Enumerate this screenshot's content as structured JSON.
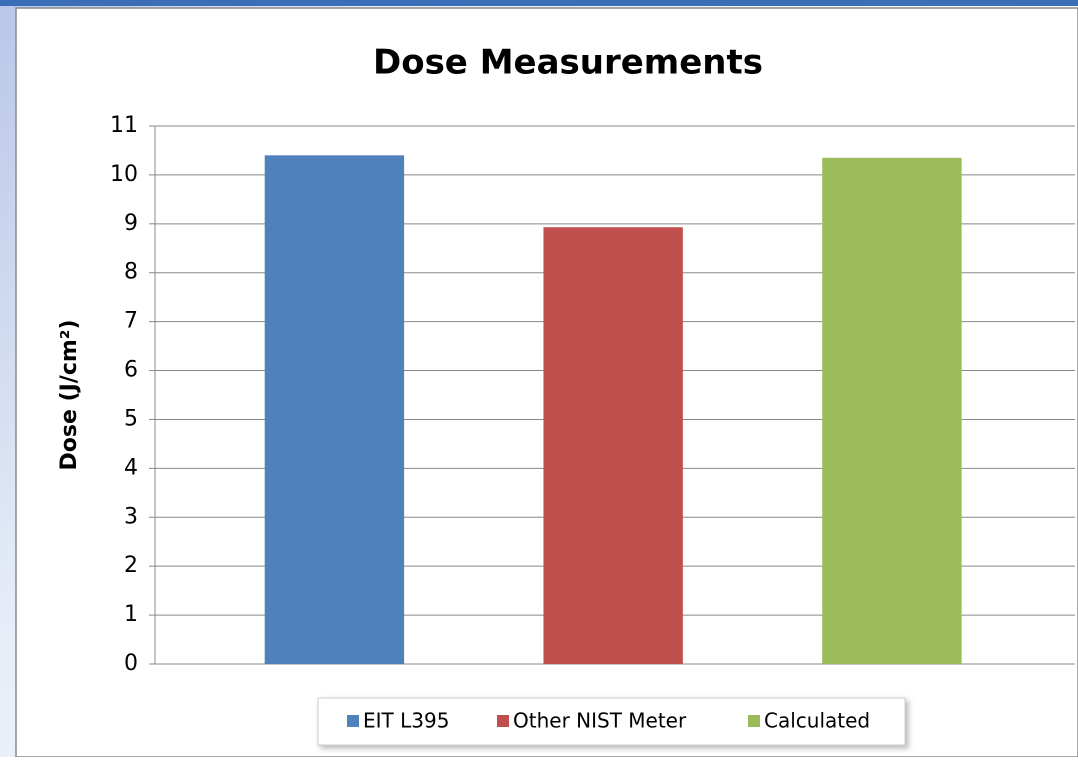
{
  "chart_data": {
    "type": "bar",
    "title": "Dose Measurements",
    "y_label": "Dose (J/cm²)",
    "categories": [
      null
    ],
    "series": [
      {
        "name": "EIT L395",
        "color": "#4f81bd",
        "values": [
          10.4
        ]
      },
      {
        "name": "Other NIST Meter",
        "color": "#c0504d",
        "values": [
          8.93
        ]
      },
      {
        "name": "Calculated",
        "color": "#9bbb59",
        "values": [
          10.35
        ]
      }
    ],
    "ylim": [
      0,
      11
    ],
    "yticks": [
      0,
      1,
      2,
      3,
      4,
      5,
      6,
      7,
      8,
      9,
      10,
      11
    ],
    "grid": true,
    "legend": "bottom"
  }
}
